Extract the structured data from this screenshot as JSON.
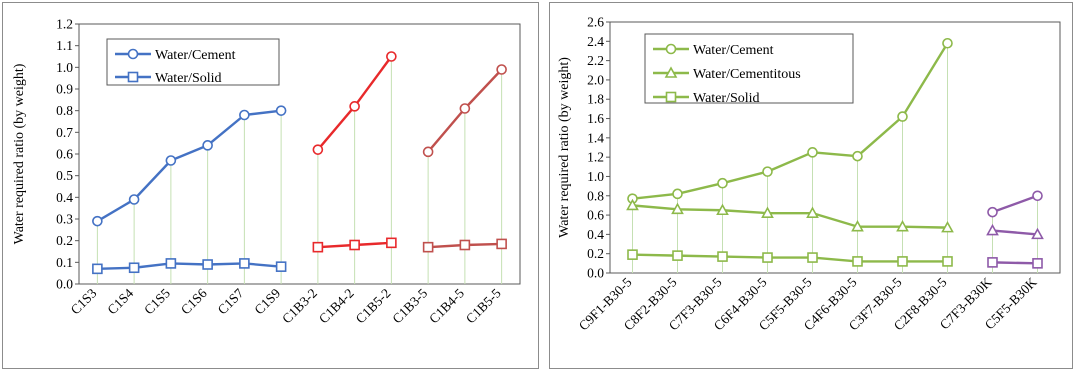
{
  "chart_data": [
    {
      "type": "line",
      "title": "",
      "xlabel": "",
      "ylabel": "Water required ratio (by weight)",
      "ylim": [
        0,
        1.2
      ],
      "yticks": [
        "0.0",
        "0.1",
        "0.2",
        "0.3",
        "0.4",
        "0.5",
        "0.6",
        "0.7",
        "0.8",
        "0.9",
        "1.0",
        "1.1",
        "1.2"
      ],
      "categories": [
        "C1S3",
        "C1S4",
        "C1S5",
        "C1S6",
        "C1S7",
        "C1S9",
        "C1B3-2",
        "C1B4-2",
        "C1B5-2",
        "C1B3-5",
        "C1B4-5",
        "C1B5-5"
      ],
      "grid": "vertical drop lines",
      "legend_position": "top-left",
      "legend": [
        {
          "name": "Water/Cement",
          "marker": "circle",
          "color": "#4472c4"
        },
        {
          "name": "Water/Solid",
          "marker": "square",
          "color": "#4472c4"
        }
      ],
      "series": [
        {
          "marker": "circle",
          "color": "#4472c4",
          "x": [
            0,
            1,
            2,
            3,
            4,
            5
          ],
          "values": [
            0.29,
            0.39,
            0.57,
            0.64,
            0.78,
            0.8
          ]
        },
        {
          "marker": "square",
          "color": "#4472c4",
          "x": [
            0,
            1,
            2,
            3,
            4,
            5
          ],
          "values": [
            0.07,
            0.075,
            0.095,
            0.09,
            0.095,
            0.08
          ]
        },
        {
          "marker": "circle",
          "color": "#e8292b",
          "x": [
            6,
            7,
            8
          ],
          "values": [
            0.62,
            0.82,
            1.05
          ]
        },
        {
          "marker": "square",
          "color": "#e8292b",
          "x": [
            6,
            7,
            8
          ],
          "values": [
            0.17,
            0.18,
            0.19
          ]
        },
        {
          "marker": "circle",
          "color": "#c0504d",
          "x": [
            9,
            10,
            11
          ],
          "values": [
            0.61,
            0.81,
            0.99
          ]
        },
        {
          "marker": "square",
          "color": "#c0504d",
          "x": [
            9,
            10,
            11
          ],
          "values": [
            0.17,
            0.18,
            0.185
          ]
        }
      ]
    },
    {
      "type": "line",
      "title": "",
      "xlabel": "",
      "ylabel": "Water required ratio (by weight)",
      "ylim": [
        0,
        2.6
      ],
      "yticks": [
        "0.0",
        "0.2",
        "0.4",
        "0.6",
        "0.8",
        "1.0",
        "1.2",
        "1.4",
        "1.6",
        "1.8",
        "2.0",
        "2.2",
        "2.4",
        "2.6"
      ],
      "categories": [
        "C9F1-B30-5",
        "C8F2-B30-5",
        "C7F3-B30-5",
        "C6F4-B30-5",
        "C5F5-B30-5",
        "C4F6-B30-5",
        "C3F7-B30-5",
        "C2F8-B30-5",
        "C7F3-B30K",
        "C5F5-B30K"
      ],
      "grid": "vertical drop lines",
      "legend_position": "top-left",
      "legend": [
        {
          "name": "Water/Cement",
          "marker": "circle",
          "color": "#8db94a"
        },
        {
          "name": "Water/Cementitous",
          "marker": "triangle",
          "color": "#8db94a"
        },
        {
          "name": "Water/Solid",
          "marker": "square",
          "color": "#8db94a"
        }
      ],
      "series": [
        {
          "marker": "circle",
          "color": "#8db94a",
          "x": [
            0,
            1,
            2,
            3,
            4,
            5,
            6,
            7
          ],
          "values": [
            0.77,
            0.82,
            0.93,
            1.05,
            1.25,
            1.21,
            1.62,
            2.38
          ]
        },
        {
          "marker": "triangle",
          "color": "#8db94a",
          "x": [
            0,
            1,
            2,
            3,
            4,
            5,
            6,
            7
          ],
          "values": [
            0.7,
            0.66,
            0.65,
            0.62,
            0.62,
            0.48,
            0.48,
            0.47
          ]
        },
        {
          "marker": "square",
          "color": "#8db94a",
          "x": [
            0,
            1,
            2,
            3,
            4,
            5,
            6,
            7
          ],
          "values": [
            0.19,
            0.18,
            0.17,
            0.16,
            0.16,
            0.12,
            0.12,
            0.12
          ]
        },
        {
          "marker": "circle",
          "color": "#8e5aa8",
          "x": [
            8,
            9
          ],
          "values": [
            0.63,
            0.8
          ]
        },
        {
          "marker": "triangle",
          "color": "#8e5aa8",
          "x": [
            8,
            9
          ],
          "values": [
            0.44,
            0.4
          ]
        },
        {
          "marker": "square",
          "color": "#8e5aa8",
          "x": [
            8,
            9
          ],
          "values": [
            0.11,
            0.1
          ]
        }
      ]
    }
  ]
}
